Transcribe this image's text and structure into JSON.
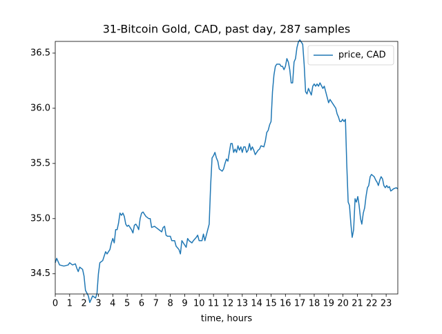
{
  "chart_data": {
    "type": "line",
    "title": "31-Bitcoin Gold, CAD, past day, 287 samples",
    "x_label": "time, hours",
    "x": [
      0,
      0.1,
      0.3,
      0.6,
      0.9,
      1.0,
      1.2,
      1.4,
      1.5,
      1.6,
      1.7,
      1.9,
      2.0,
      2.1,
      2.3,
      2.4,
      2.5,
      2.6,
      2.8,
      2.9,
      3.0,
      3.1,
      3.3,
      3.5,
      3.6,
      3.8,
      3.9,
      4.0,
      4.1,
      4.2,
      4.3,
      4.4,
      4.5,
      4.6,
      4.7,
      4.8,
      4.9,
      5.0,
      5.1,
      5.3,
      5.4,
      5.5,
      5.6,
      5.7,
      5.8,
      5.9,
      6.0,
      6.1,
      6.3,
      6.5,
      6.6,
      6.7,
      6.9,
      7.0,
      7.2,
      7.4,
      7.5,
      7.6,
      7.7,
      7.8,
      8.0,
      8.1,
      8.3,
      8.4,
      8.6,
      8.7,
      8.8,
      8.9,
      9.1,
      9.2,
      9.3,
      9.5,
      9.6,
      9.8,
      9.9,
      10.0,
      10.2,
      10.3,
      10.4,
      10.7,
      10.8,
      10.9,
      11.0,
      11.1,
      11.2,
      11.3,
      11.4,
      11.6,
      11.7,
      11.8,
      11.9,
      12.0,
      12.1,
      12.2,
      12.3,
      12.4,
      12.5,
      12.6,
      12.7,
      12.8,
      12.9,
      13.0,
      13.1,
      13.2,
      13.3,
      13.4,
      13.5,
      13.6,
      13.7,
      13.8,
      13.9,
      14.1,
      14.2,
      14.3,
      14.5,
      14.6,
      14.7,
      14.8,
      14.9,
      15.0,
      15.1,
      15.2,
      15.3,
      15.4,
      15.6,
      15.7,
      15.8,
      15.9,
      16.0,
      16.1,
      16.2,
      16.3,
      16.4,
      16.5,
      16.6,
      16.7,
      16.8,
      16.9,
      17.0,
      17.1,
      17.2,
      17.3,
      17.4,
      17.5,
      17.6,
      17.7,
      17.8,
      17.9,
      18.0,
      18.1,
      18.2,
      18.3,
      18.4,
      18.6,
      18.7,
      18.8,
      18.9,
      19.0,
      19.1,
      19.4,
      19.5,
      19.59,
      19.69,
      19.78,
      19.88,
      19.97,
      20.07,
      20.17,
      20.26,
      20.36,
      20.45,
      20.55,
      20.64,
      20.74,
      20.84,
      20.93,
      21.03,
      21.12,
      21.22,
      21.31,
      21.41,
      21.51,
      21.6,
      21.7,
      21.79,
      21.89,
      21.98,
      22.17,
      22.27,
      22.37,
      22.46,
      22.56,
      22.65,
      22.75,
      22.84,
      22.94,
      23.04,
      23.13,
      23.23,
      23.32,
      23.42,
      23.51,
      23.7,
      23.8
    ],
    "series": [
      {
        "name": "price, CAD",
        "color": "#1f77b4",
        "values": [
          34.6,
          34.64,
          34.58,
          34.57,
          34.58,
          34.6,
          34.58,
          34.59,
          34.55,
          34.52,
          34.56,
          34.54,
          34.48,
          34.35,
          34.3,
          34.24,
          34.27,
          34.3,
          34.28,
          34.32,
          34.5,
          34.6,
          34.62,
          34.7,
          34.68,
          34.72,
          34.78,
          34.82,
          34.78,
          34.9,
          34.9,
          34.96,
          35.05,
          35.03,
          35.05,
          35.02,
          34.95,
          34.93,
          34.94,
          34.9,
          34.87,
          34.94,
          34.95,
          34.93,
          34.9,
          35.0,
          35.05,
          35.06,
          35.02,
          35.0,
          35.0,
          34.92,
          34.93,
          34.92,
          34.9,
          34.88,
          34.92,
          34.93,
          34.85,
          34.84,
          34.84,
          34.8,
          34.8,
          34.75,
          34.72,
          34.68,
          34.8,
          34.78,
          34.74,
          34.82,
          34.8,
          34.78,
          34.8,
          34.83,
          34.85,
          34.8,
          34.8,
          34.86,
          34.8,
          34.95,
          35.3,
          35.55,
          35.57,
          35.6,
          35.55,
          35.52,
          35.45,
          35.43,
          35.45,
          35.5,
          35.54,
          35.52,
          35.6,
          35.68,
          35.68,
          35.6,
          35.63,
          35.6,
          35.66,
          35.62,
          35.65,
          35.6,
          35.65,
          35.65,
          35.6,
          35.62,
          35.68,
          35.62,
          35.65,
          35.62,
          35.58,
          35.62,
          35.63,
          35.66,
          35.65,
          35.7,
          35.78,
          35.8,
          35.85,
          35.88,
          36.15,
          36.3,
          36.38,
          36.4,
          36.4,
          36.38,
          36.38,
          36.35,
          36.38,
          36.45,
          36.42,
          36.35,
          36.23,
          36.23,
          36.42,
          36.45,
          36.55,
          36.6,
          36.62,
          36.6,
          36.58,
          36.4,
          36.15,
          36.13,
          36.18,
          36.15,
          36.12,
          36.2,
          36.22,
          36.2,
          36.22,
          36.2,
          36.23,
          36.18,
          36.2,
          36.15,
          36.1,
          36.05,
          36.08,
          36.02,
          36.0,
          35.95,
          35.92,
          35.88,
          35.88,
          35.9,
          35.88,
          35.9,
          35.5,
          35.15,
          35.12,
          34.95,
          34.83,
          34.9,
          35.18,
          35.15,
          35.2,
          35.12,
          35.0,
          34.95,
          35.05,
          35.1,
          35.2,
          35.28,
          35.3,
          35.38,
          35.4,
          35.38,
          35.35,
          35.33,
          35.3,
          35.35,
          35.38,
          35.36,
          35.3,
          35.28,
          35.3,
          35.28,
          35.29,
          35.25,
          35.26,
          35.27,
          35.28,
          35.27
        ]
      }
    ],
    "xlim": [
      0,
      23.81
    ],
    "xticks": [
      0,
      1,
      2,
      3,
      4,
      5,
      6,
      7,
      8,
      9,
      10,
      11,
      12,
      13,
      14,
      15,
      16,
      17,
      18,
      19,
      20,
      21,
      22,
      23
    ],
    "ylim": [
      34.317,
      36.606
    ],
    "yticks": [
      34.5,
      {
        "value": 35,
        "label": "35.0"
      },
      35.5,
      {
        "value": 36,
        "label": "36.0"
      },
      36.5
    ],
    "legend": "upper right"
  }
}
